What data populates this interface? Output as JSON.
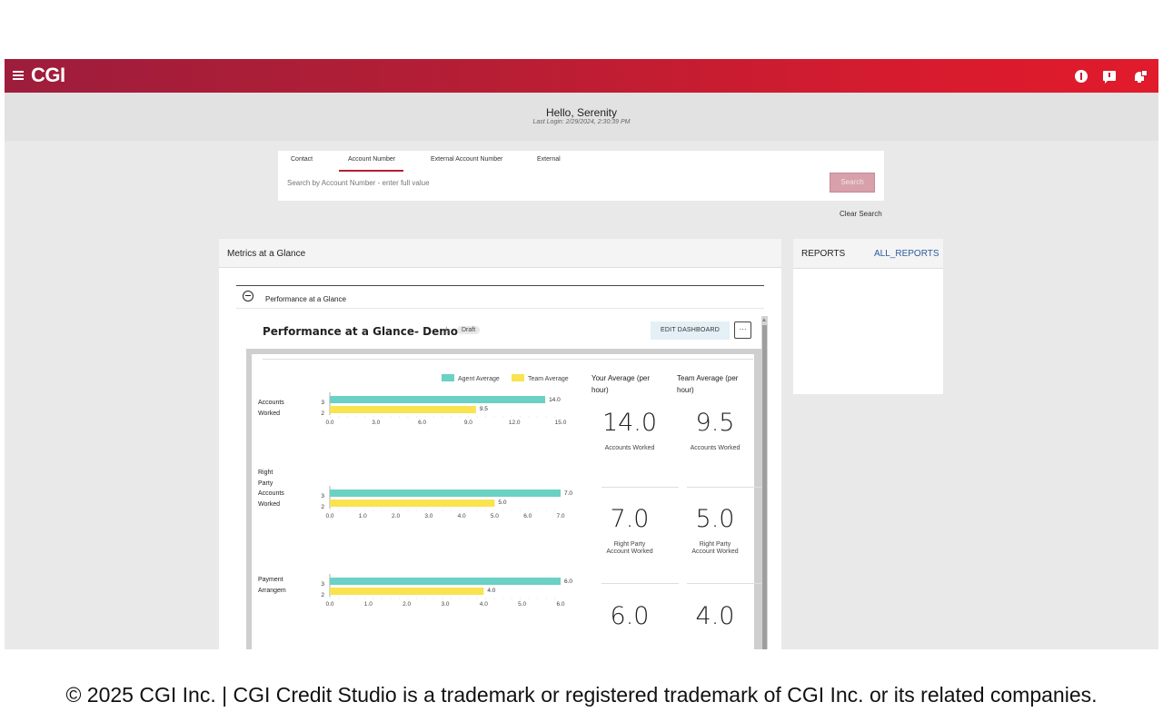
{
  "topbar": {
    "logo": "CGI",
    "icons": [
      "menu-icon",
      "info-icon",
      "chat-icon",
      "bell-icon"
    ],
    "colors": {
      "gradient_start": "#9e1d3c",
      "gradient_end": "#e01b2c"
    }
  },
  "greeting": {
    "hello": "Hello, Serenity",
    "last_login": "Last Login: 2/29/2024, 2:30:39 PM"
  },
  "search": {
    "tabs": [
      "Contact",
      "Account Number",
      "External Account Number",
      "External"
    ],
    "active_tab": "Account Number",
    "placeholder": "Search by Account Number - enter full value",
    "button": "Search",
    "clear": "Clear Search"
  },
  "metrics": {
    "title": "Metrics at a Glance",
    "section": "Performance at a Glance",
    "dashboard_title": "Performance at a Glance- Demo",
    "status_badge": "Draft",
    "edit_button": "EDIT DASHBOARD",
    "more_button": "···"
  },
  "chart_data": {
    "type": "bar",
    "orientation": "horizontal",
    "legend": [
      "Agent Average",
      "Team Average"
    ],
    "colors": {
      "agent": "#6ad1c4",
      "team": "#f9e34f"
    },
    "charts": [
      {
        "category": "Accounts Worked",
        "lines": [
          "Accounts",
          "Worked"
        ],
        "agent": 14.0,
        "team": 9.5,
        "agent_label": "14.0",
        "team_label": "9.5",
        "xlim": [
          0,
          15
        ],
        "ticks": [
          "0.0",
          "3.0",
          "6.0",
          "9.0",
          "12.0",
          "15.0"
        ],
        "ytick_labels": [
          "3",
          "2"
        ]
      },
      {
        "category": "Right Party Accounts Worked",
        "lines": [
          "Right",
          "Party",
          "Accounts",
          "Worked"
        ],
        "agent": 7.0,
        "team": 5.0,
        "agent_label": "7.0",
        "team_label": "5.0",
        "xlim": [
          0,
          7
        ],
        "ticks": [
          "0.0",
          "1.0",
          "2.0",
          "3.0",
          "4.0",
          "5.0",
          "6.0",
          "7.0"
        ],
        "ytick_labels": [
          "3",
          "2"
        ]
      },
      {
        "category": "Payment Arrangem",
        "lines": [
          "Payment",
          "Arrangem"
        ],
        "agent": 6.0,
        "team": 4.0,
        "agent_label": "6.0",
        "team_label": "4.0",
        "xlim": [
          0,
          6
        ],
        "ticks": [
          "0.0",
          "1.0",
          "2.0",
          "3.0",
          "4.0",
          "5.0",
          "6.0"
        ],
        "ytick_labels": [
          "3",
          "2"
        ]
      }
    ]
  },
  "kpis": {
    "your_head": [
      "Your Average (per",
      "hour)"
    ],
    "team_head": [
      "Team Average (per",
      "hour)"
    ],
    "rows": [
      {
        "your": "14.0",
        "team": "9.5",
        "label": [
          "Accounts Worked"
        ]
      },
      {
        "your": "7.0",
        "team": "5.0",
        "label": [
          "Right Party",
          "Account Worked"
        ]
      },
      {
        "your": "6.0",
        "team": "4.0",
        "label": []
      }
    ]
  },
  "reports": {
    "title": "REPORTS",
    "link": "ALL_REPORTS"
  },
  "footer": "© 2025 CGI Inc. | CGI Credit Studio is a trademark or registered trademark of CGI Inc. or its related companies."
}
